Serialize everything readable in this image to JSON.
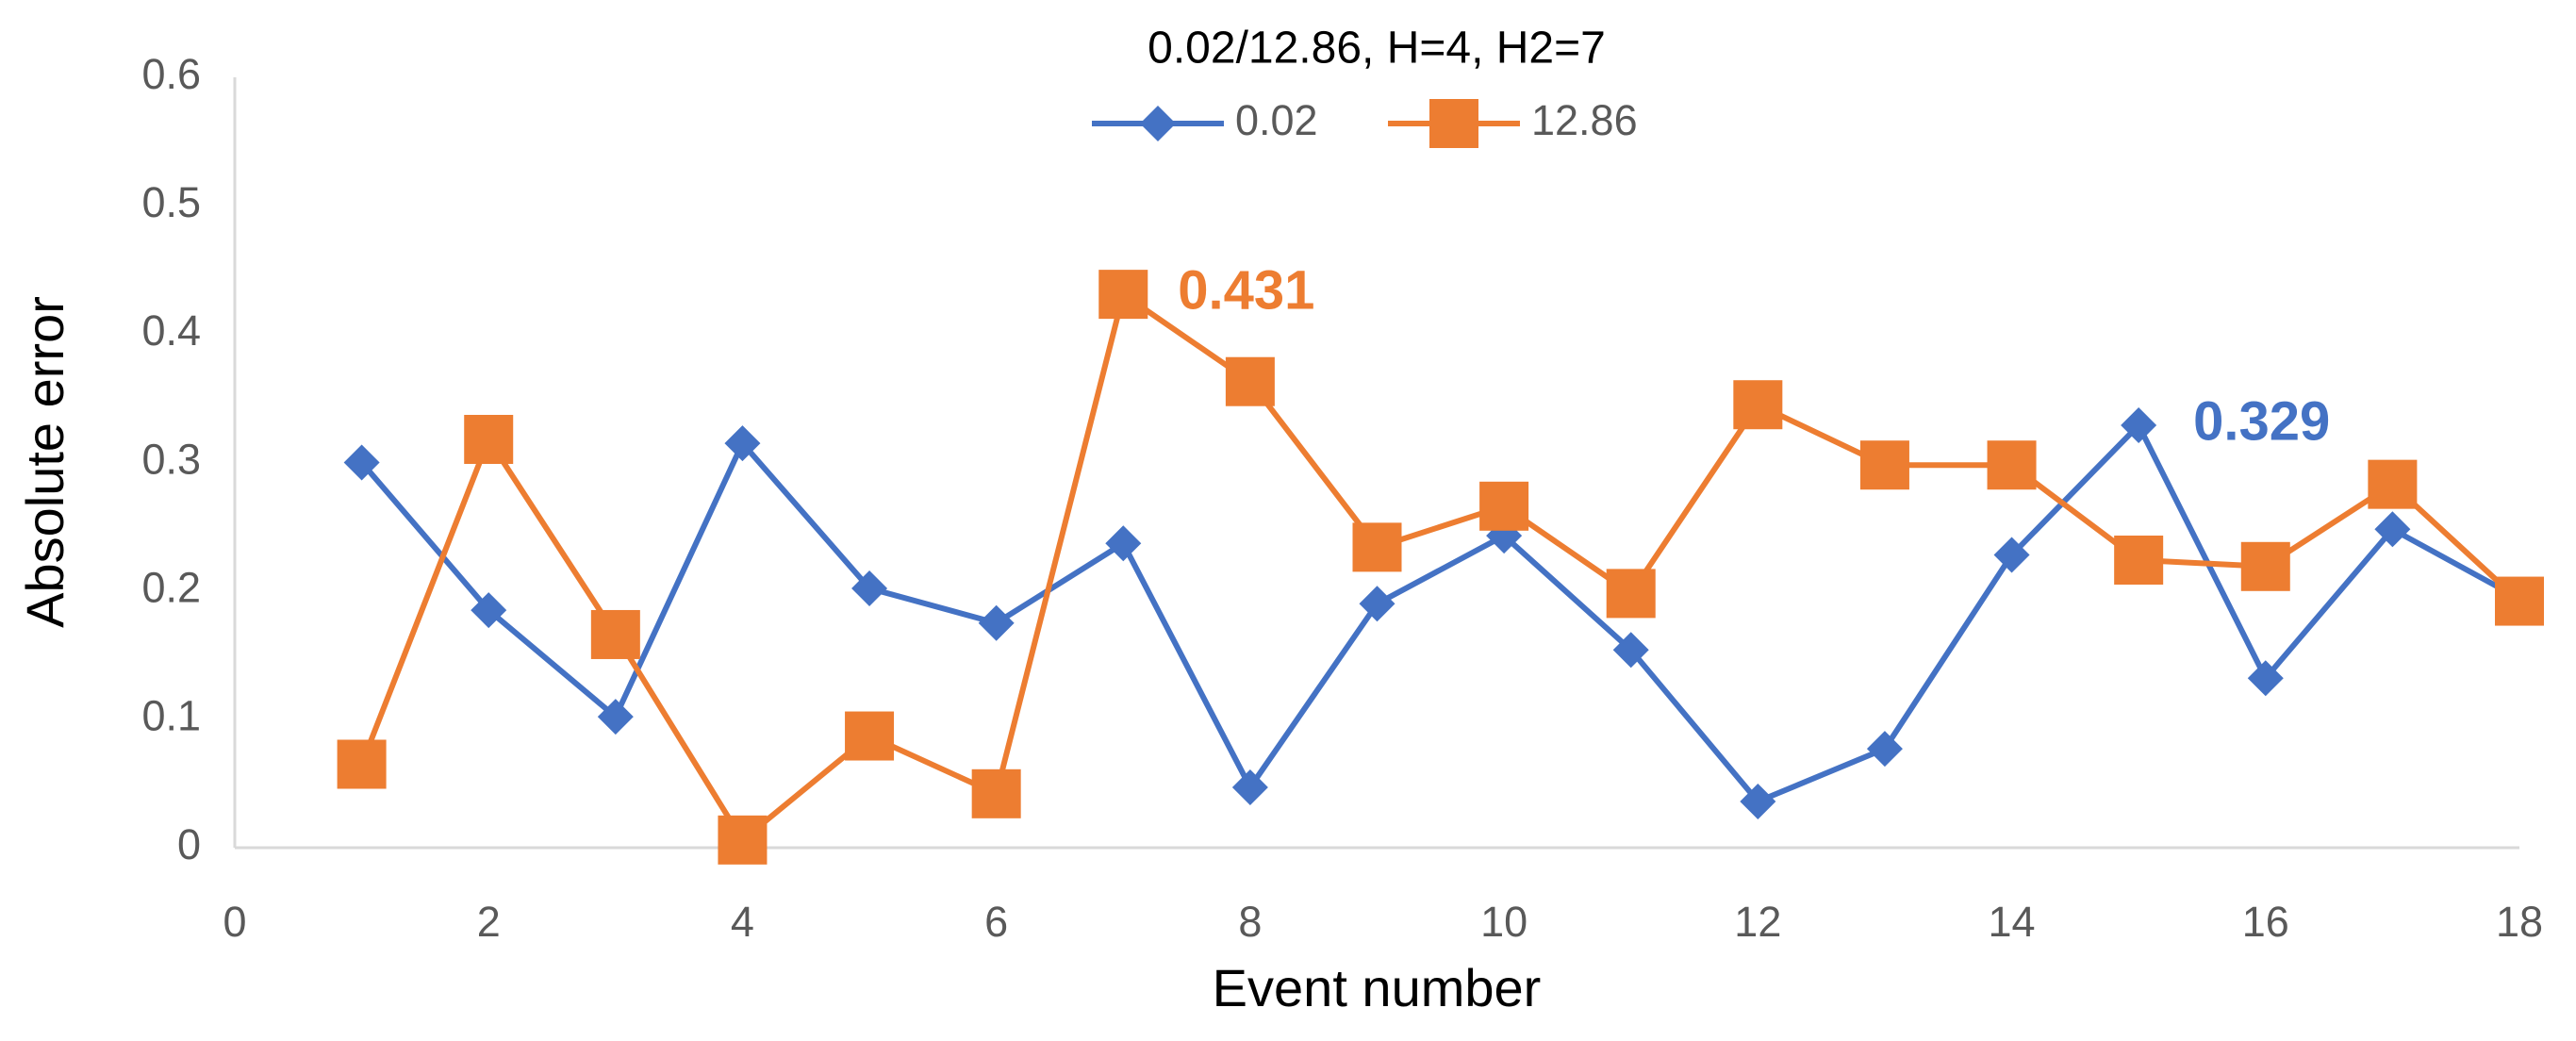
{
  "chart_data": {
    "type": "line",
    "title": "0.02/12.86, H=4, H2=7",
    "x_label": "Event number",
    "y_label": "Absolute error",
    "x": [
      1,
      2,
      3,
      4,
      5,
      6,
      7,
      8,
      9,
      10,
      11,
      12,
      13,
      14,
      15,
      16,
      17,
      18
    ],
    "series": [
      {
        "name": "0.02",
        "color": "#4472c4",
        "marker": "diamond",
        "values": [
          0.3,
          0.185,
          0.102,
          0.315,
          0.202,
          0.175,
          0.237,
          0.047,
          0.19,
          0.243,
          0.154,
          0.036,
          0.077,
          0.228,
          0.329,
          0.132,
          0.248,
          0.194
        ],
        "value_labels": [
          null,
          null,
          null,
          null,
          null,
          null,
          null,
          null,
          null,
          null,
          null,
          null,
          null,
          null,
          "0.329",
          null,
          null,
          null
        ]
      },
      {
        "name": "12.86",
        "color": "#ed7d31",
        "marker": "square",
        "values": [
          0.065,
          0.318,
          0.166,
          0.006,
          0.087,
          0.042,
          0.431,
          0.363,
          0.234,
          0.266,
          0.198,
          0.345,
          0.298,
          0.298,
          0.224,
          0.219,
          0.283,
          0.192
        ],
        "value_labels": [
          null,
          null,
          null,
          null,
          null,
          null,
          "0.431",
          null,
          null,
          null,
          null,
          null,
          null,
          null,
          null,
          null,
          null,
          null
        ]
      }
    ],
    "xlim": [
      0,
      18
    ],
    "xticks": [
      0,
      2,
      4,
      6,
      8,
      10,
      12,
      14,
      16,
      18
    ],
    "ylim": [
      0,
      0.6
    ],
    "yticks": [
      0,
      0.1,
      0.2,
      0.3,
      0.4,
      0.5,
      0.6
    ],
    "grid": false,
    "legend": "top"
  }
}
